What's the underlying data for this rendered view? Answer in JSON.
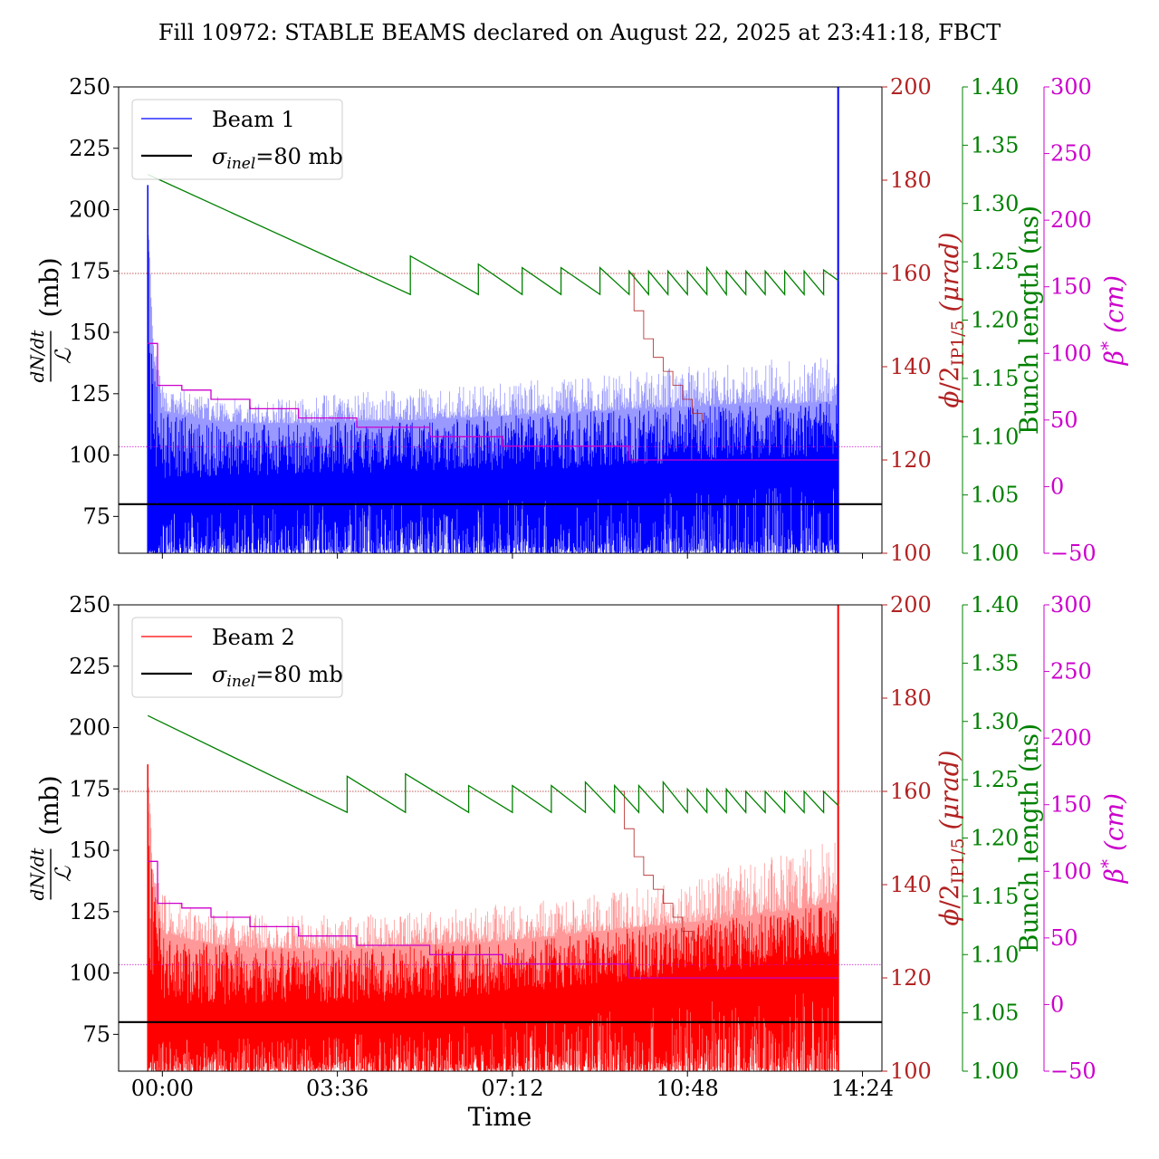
{
  "title": "Fill 10972: STABLE BEAMS declared on August 22, 2025 at 23:41:18, FBCT",
  "xlabel": "Time",
  "x_ticks": [
    "00:00",
    "03:36",
    "07:12",
    "10:48",
    "14:24"
  ],
  "colors": {
    "beam1": "#0000ff",
    "beam1_light": "#9999ff",
    "beam2": "#ff0000",
    "beam2_light": "#ff9999",
    "crossing_axis": "#b22222",
    "bunch_axis": "#008000",
    "beta_axis": "#cc00cc",
    "reference": "#000000"
  },
  "chart_data": [
    {
      "type": "line",
      "panel": "top",
      "ylabel_main": {
        "numerator": "dN/dt",
        "denominator": "ℒ",
        "unit": "(mb)"
      },
      "ylabel_crossing": "ϕ/2IP1/5 (μrad)",
      "ylabel_bunch": "Bunch length (ns)",
      "ylabel_beta": "β* (cm)",
      "legend": {
        "placement": "top-left",
        "entries": [
          "Beam 1",
          "σinel=80 mb"
        ]
      },
      "ylim_main": [
        60,
        250
      ],
      "ylim_crossing": [
        100,
        200
      ],
      "ylim_bunch": [
        1.0,
        1.4
      ],
      "ylim_beta": [
        -50,
        300
      ],
      "yticks_main": [
        "75",
        "100",
        "125",
        "150",
        "175",
        "200",
        "225",
        "250"
      ],
      "yticks_crossing": [
        "100",
        "120",
        "140",
        "160",
        "180",
        "200"
      ],
      "yticks_bunch": [
        "1.00",
        "1.05",
        "1.10",
        "1.15",
        "1.20",
        "1.25",
        "1.30",
        "1.35",
        "1.40"
      ],
      "yticks_beta": [
        "−50",
        "0",
        "50",
        "100",
        "150",
        "200",
        "250",
        "300"
      ],
      "xlim_hours": [
        -0.9,
        14.8
      ],
      "beam_start_hours": -0.3,
      "beam_end_hours": 13.9,
      "sigma_inel_mb": 80,
      "crossing_level_urad": 160,
      "beta_level_cm": 30,
      "series": [
        {
          "name": "Beam 1",
          "role": "cross_section_envelope",
          "x_hours": [
            -0.3,
            -0.2,
            0.0,
            1.0,
            2.0,
            3.0,
            4.0,
            5.0,
            6.0,
            7.0,
            8.0,
            9.0,
            10.0,
            11.0,
            12.0,
            13.0,
            13.85
          ],
          "y_mb_upper": [
            210,
            150,
            128,
            124,
            123,
            124,
            126,
            127,
            128,
            130,
            131,
            133,
            135,
            137,
            138,
            140,
            141
          ],
          "y_mb_lower": [
            60,
            70,
            76,
            78,
            80,
            81,
            81,
            81,
            82,
            82,
            82,
            83,
            84,
            85,
            86,
            87,
            88
          ],
          "y_mb_band_top": [
            198,
            140,
            118,
            114,
            113,
            113,
            114,
            114,
            115,
            116,
            117,
            118,
            119,
            120,
            121,
            121,
            122
          ]
        },
        {
          "role": "crossing_angle",
          "x_hours": [
            -0.3,
            -0.1,
            -0.1,
            0.4,
            0.4,
            1.0,
            1.0,
            1.8,
            1.8,
            2.8,
            2.8,
            4.0,
            4.0,
            5.5,
            5.5,
            7.0,
            7.0,
            9.6,
            9.6,
            13.9
          ],
          "y_urad": [
            145,
            145,
            136,
            136,
            135,
            135,
            133,
            133,
            131,
            131,
            129,
            129,
            127,
            127,
            125,
            125,
            123,
            123,
            120,
            120
          ]
        },
        {
          "role": "crossing_angle_levelling",
          "x_hours": [
            9.6,
            9.7,
            9.9,
            10.1,
            10.3,
            10.5,
            10.7,
            10.9,
            11.1
          ],
          "y_urad": [
            160,
            152,
            146,
            142,
            139,
            136,
            133,
            130,
            128
          ]
        },
        {
          "role": "bunch_length",
          "x_hours": [
            -0.3,
            5.1,
            5.1,
            6.5,
            6.5,
            7.4,
            7.4,
            8.2,
            8.2,
            9.0,
            9.0,
            9.6,
            9.6,
            10.0,
            10.0,
            10.4,
            10.4,
            10.8,
            10.8,
            11.2,
            11.2,
            11.6,
            11.6,
            12.0,
            12.0,
            12.4,
            12.4,
            12.8,
            12.8,
            13.2,
            13.2,
            13.6,
            13.6,
            13.9
          ],
          "y_ns": [
            1.325,
            1.222,
            1.255,
            1.222,
            1.248,
            1.222,
            1.245,
            1.222,
            1.245,
            1.222,
            1.245,
            1.222,
            1.242,
            1.222,
            1.242,
            1.222,
            1.242,
            1.222,
            1.242,
            1.222,
            1.245,
            1.222,
            1.242,
            1.222,
            1.242,
            1.222,
            1.242,
            1.222,
            1.242,
            1.222,
            1.242,
            1.222,
            1.243,
            1.234
          ]
        }
      ]
    },
    {
      "type": "line",
      "panel": "bottom",
      "ylabel_main": {
        "numerator": "dN/dt",
        "denominator": "ℒ",
        "unit": "(mb)"
      },
      "ylabel_crossing": "ϕ/2IP1/5 (μrad)",
      "ylabel_bunch": "Bunch length (ns)",
      "ylabel_beta": "β* (cm)",
      "legend": {
        "placement": "top-left",
        "entries": [
          "Beam 2",
          "σinel=80 mb"
        ]
      },
      "ylim_main": [
        60,
        250
      ],
      "ylim_crossing": [
        100,
        200
      ],
      "ylim_bunch": [
        1.0,
        1.4
      ],
      "ylim_beta": [
        -50,
        300
      ],
      "yticks_main": [
        "75",
        "100",
        "125",
        "150",
        "175",
        "200",
        "225",
        "250"
      ],
      "yticks_crossing": [
        "100",
        "120",
        "140",
        "160",
        "180",
        "200"
      ],
      "yticks_bunch": [
        "1.00",
        "1.05",
        "1.10",
        "1.15",
        "1.20",
        "1.25",
        "1.30",
        "1.35",
        "1.40"
      ],
      "yticks_beta": [
        "−50",
        "0",
        "50",
        "100",
        "150",
        "200",
        "250",
        "300"
      ],
      "xlim_hours": [
        -0.9,
        14.8
      ],
      "beam_start_hours": -0.3,
      "beam_end_hours": 13.9,
      "sigma_inel_mb": 80,
      "crossing_level_urad": 160,
      "beta_level_cm": 30,
      "series": [
        {
          "name": "Beam 2",
          "role": "cross_section_envelope",
          "x_hours": [
            -0.3,
            -0.2,
            0.0,
            1.0,
            2.0,
            3.0,
            4.0,
            5.0,
            6.0,
            7.0,
            8.0,
            9.0,
            10.0,
            11.0,
            12.0,
            13.0,
            13.85
          ],
          "y_mb_upper": [
            185,
            160,
            132,
            126,
            124,
            124,
            124,
            125,
            126,
            128,
            130,
            133,
            136,
            140,
            145,
            150,
            155
          ],
          "y_mb_lower": [
            60,
            70,
            72,
            74,
            75,
            75,
            76,
            77,
            78,
            80,
            82,
            84,
            86,
            88,
            90,
            92,
            94
          ],
          "y_mb_band_top": [
            170,
            140,
            116,
            112,
            110,
            110,
            110,
            111,
            112,
            113,
            115,
            117,
            119,
            121,
            123,
            126,
            129
          ]
        },
        {
          "role": "crossing_angle",
          "x_hours": [
            -0.3,
            -0.1,
            -0.1,
            0.4,
            0.4,
            1.0,
            1.0,
            1.8,
            1.8,
            2.8,
            2.8,
            4.0,
            4.0,
            5.5,
            5.5,
            7.0,
            7.0,
            9.6,
            9.6,
            13.9
          ],
          "y_urad": [
            145,
            145,
            136,
            136,
            135,
            135,
            133,
            133,
            131,
            131,
            129,
            129,
            127,
            127,
            125,
            125,
            123,
            123,
            120,
            120
          ]
        },
        {
          "role": "crossing_angle_levelling",
          "x_hours": [
            9.4,
            9.5,
            9.7,
            9.9,
            10.1,
            10.3,
            10.5,
            10.7,
            10.9
          ],
          "y_urad": [
            160,
            152,
            146,
            142,
            139,
            136,
            133,
            130,
            128
          ]
        },
        {
          "role": "bunch_length",
          "x_hours": [
            -0.3,
            3.8,
            3.8,
            5.0,
            5.0,
            6.3,
            6.3,
            7.2,
            7.2,
            8.0,
            8.0,
            8.7,
            8.7,
            9.3,
            9.3,
            9.8,
            9.8,
            10.3,
            10.3,
            10.8,
            10.8,
            11.2,
            11.2,
            11.6,
            11.6,
            12.0,
            12.0,
            12.4,
            12.4,
            12.8,
            12.8,
            13.2,
            13.2,
            13.6,
            13.6,
            13.9
          ],
          "y_ns": [
            1.305,
            1.222,
            1.253,
            1.222,
            1.255,
            1.222,
            1.245,
            1.222,
            1.245,
            1.222,
            1.245,
            1.222,
            1.248,
            1.222,
            1.245,
            1.222,
            1.245,
            1.222,
            1.248,
            1.222,
            1.242,
            1.222,
            1.242,
            1.222,
            1.242,
            1.222,
            1.24,
            1.222,
            1.24,
            1.222,
            1.24,
            1.222,
            1.24,
            1.222,
            1.24,
            1.228
          ]
        }
      ]
    }
  ]
}
